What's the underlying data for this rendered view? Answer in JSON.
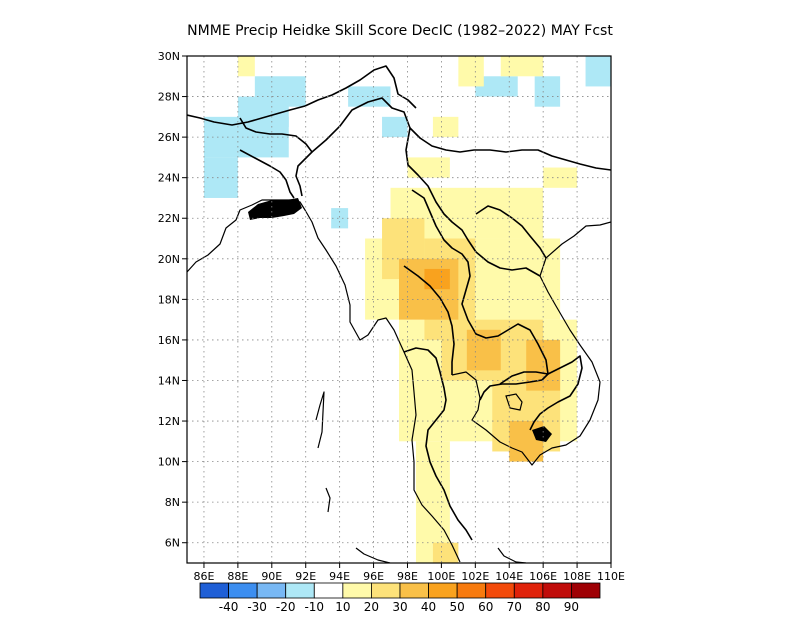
{
  "title": "NMME Precip Heidke Skill Score DecIC (1982–2022) MAY Fcst",
  "axes": {
    "x_labels": [
      "86E",
      "88E",
      "90E",
      "92E",
      "94E",
      "96E",
      "98E",
      "100E",
      "102E",
      "104E",
      "106E",
      "108E",
      "110E"
    ],
    "y_labels": [
      "30N",
      "28N",
      "26N",
      "24N",
      "22N",
      "20N",
      "18N",
      "16N",
      "14N",
      "12N",
      "10N",
      "8N",
      "6N"
    ]
  },
  "colorbar": {
    "colors": [
      "#1f5fd6",
      "#3c8ef0",
      "#78b8f4",
      "#aee8f6",
      "#ffffff",
      "#fffaaa",
      "#fde27a",
      "#f9c048",
      "#f9a21e",
      "#f77a0e",
      "#f34a0a",
      "#e0220a",
      "#c00c0a",
      "#9e0004"
    ],
    "labels": [
      "-40",
      "-30",
      "-20",
      "-10",
      "10",
      "20",
      "30",
      "40",
      "50",
      "60",
      "70",
      "80",
      "90"
    ]
  },
  "chart_data": {
    "type": "heatmap",
    "title": "NMME Precip Heidke Skill Score DecIC (1982–2022) MAY Fcst",
    "xlim": [
      85,
      110
    ],
    "ylim": [
      5,
      30
    ],
    "legend": "bottom colorbar",
    "grid": true,
    "cells": [
      {
        "lon": [
          86,
          91
        ],
        "lat": [
          25,
          27
        ],
        "v": -15
      },
      {
        "lon": [
          86,
          88
        ],
        "lat": [
          23,
          25
        ],
        "v": -15
      },
      {
        "lon": [
          89,
          92
        ],
        "lat": [
          27.5,
          29
        ],
        "v": -15
      },
      {
        "lon": [
          88,
          91
        ],
        "lat": [
          26.5,
          28
        ],
        "v": -15
      },
      {
        "lon": [
          94.5,
          97
        ],
        "lat": [
          27.5,
          28.5
        ],
        "v": -15
      },
      {
        "lon": [
          96.5,
          98
        ],
        "lat": [
          26,
          27
        ],
        "v": -15
      },
      {
        "lon": [
          102,
          104.5
        ],
        "lat": [
          28,
          29
        ],
        "v": -15
      },
      {
        "lon": [
          105.5,
          107
        ],
        "lat": [
          27.5,
          29
        ],
        "v": -15
      },
      {
        "lon": [
          108.5,
          110
        ],
        "lat": [
          28.5,
          30
        ],
        "v": -15
      },
      {
        "lon": [
          93.5,
          94.5
        ],
        "lat": [
          21.5,
          22.5
        ],
        "v": -15
      },
      {
        "lon": [
          88,
          89
        ],
        "lat": [
          29,
          30
        ],
        "v": 15
      },
      {
        "lon": [
          101,
          102.5
        ],
        "lat": [
          28.5,
          30
        ],
        "v": 15
      },
      {
        "lon": [
          103.5,
          106
        ],
        "lat": [
          29,
          30
        ],
        "v": 15
      },
      {
        "lon": [
          99.5,
          101
        ],
        "lat": [
          26,
          27
        ],
        "v": 15
      },
      {
        "lon": [
          98,
          100.5
        ],
        "lat": [
          24,
          25
        ],
        "v": 15
      },
      {
        "lon": [
          106,
          108
        ],
        "lat": [
          23.5,
          24.5
        ],
        "v": 15
      },
      {
        "lon": [
          97,
          106
        ],
        "lat": [
          21,
          23.5
        ],
        "v": 15
      },
      {
        "lon": [
          95.5,
          107
        ],
        "lat": [
          17,
          21
        ],
        "v": 15
      },
      {
        "lon": [
          97.5,
          108
        ],
        "lat": [
          11,
          17
        ],
        "v": 15
      },
      {
        "lon": [
          98.5,
          100.5
        ],
        "lat": [
          5,
          11
        ],
        "v": 15
      },
      {
        "lon": [
          96.5,
          99
        ],
        "lat": [
          19,
          22
        ],
        "v": 25
      },
      {
        "lon": [
          99,
          102
        ],
        "lat": [
          16,
          21
        ],
        "v": 25
      },
      {
        "lon": [
          100,
          106
        ],
        "lat": [
          14,
          17
        ],
        "v": 25
      },
      {
        "lon": [
          103,
          107
        ],
        "lat": [
          10.5,
          15
        ],
        "v": 25
      },
      {
        "lon": [
          99.5,
          101
        ],
        "lat": [
          5,
          6
        ],
        "v": 25
      },
      {
        "lon": [
          97.5,
          101
        ],
        "lat": [
          17,
          20
        ],
        "v": 35
      },
      {
        "lon": [
          101.5,
          103.5
        ],
        "lat": [
          14.5,
          16.5
        ],
        "v": 35
      },
      {
        "lon": [
          105,
          107
        ],
        "lat": [
          13.5,
          16
        ],
        "v": 35
      },
      {
        "lon": [
          104,
          106
        ],
        "lat": [
          10,
          12
        ],
        "v": 35
      },
      {
        "lon": [
          99,
          100.5
        ],
        "lat": [
          18.5,
          19.5
        ],
        "v": 45
      }
    ]
  }
}
